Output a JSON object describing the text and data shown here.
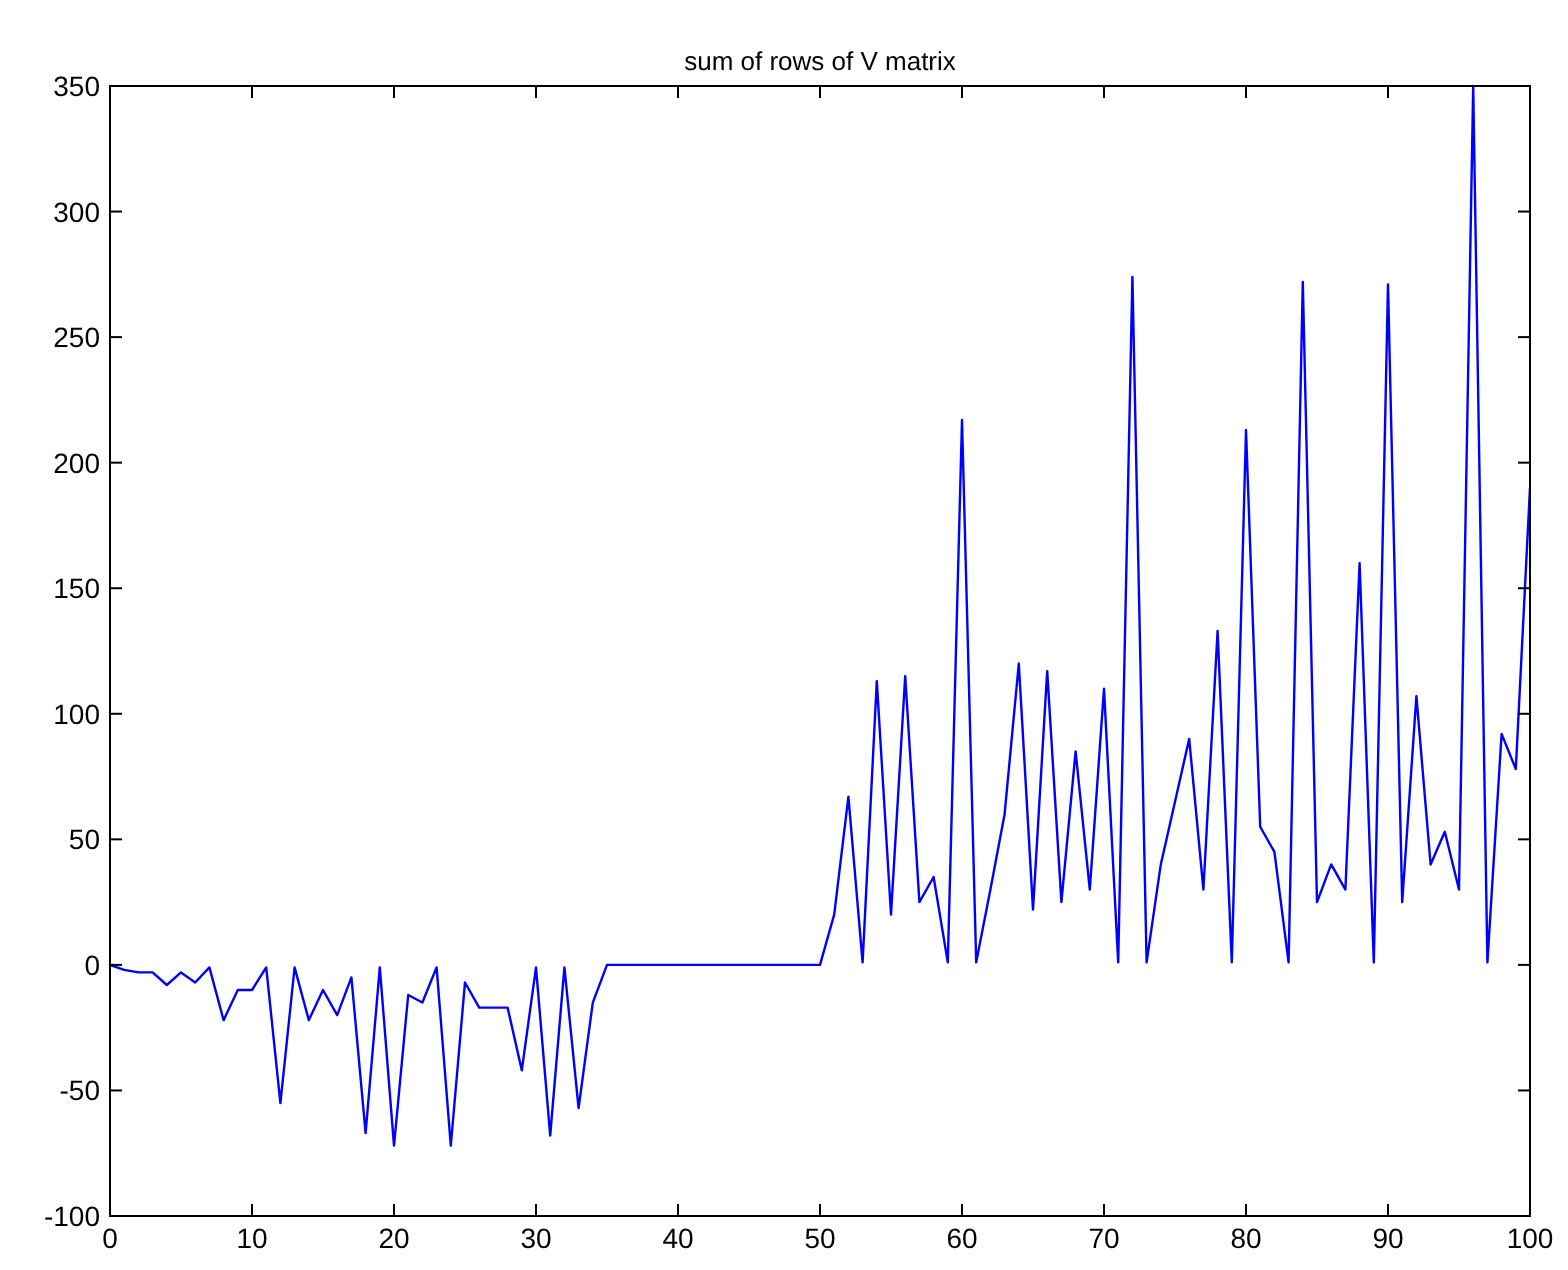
{
  "chart_data": {
    "type": "line",
    "title": "sum of rows of V matrix",
    "x": [
      0,
      1,
      2,
      3,
      4,
      5,
      6,
      7,
      8,
      9,
      10,
      11,
      12,
      13,
      14,
      15,
      16,
      17,
      18,
      19,
      20,
      21,
      22,
      23,
      24,
      25,
      26,
      27,
      28,
      29,
      30,
      31,
      32,
      33,
      34,
      35,
      36,
      37,
      38,
      39,
      40,
      41,
      42,
      43,
      44,
      45,
      46,
      47,
      48,
      49,
      50,
      51,
      52,
      53,
      54,
      55,
      56,
      57,
      58,
      59,
      60,
      61,
      62,
      63,
      64,
      65,
      66,
      67,
      68,
      69,
      70,
      71,
      72,
      73,
      74,
      75,
      76,
      77,
      78,
      79,
      80,
      81,
      82,
      83,
      84,
      85,
      86,
      87,
      88,
      89,
      90,
      91,
      92,
      93,
      94,
      95,
      96,
      97,
      98,
      99,
      100
    ],
    "series": [
      {
        "color": "#0000ff",
        "values": [
          0,
          -2,
          -3,
          -3,
          -8,
          -3,
          -7,
          -1,
          -22,
          -10,
          -10,
          -1,
          -55,
          -1,
          -22,
          -10,
          -20,
          -5,
          -67,
          -1,
          -72,
          -12,
          -15,
          -1,
          -72,
          -7,
          -17,
          -17,
          -17,
          -42,
          -1,
          -68,
          -1,
          -57,
          -15,
          0,
          0,
          0,
          0,
          0,
          0,
          0,
          0,
          0,
          0,
          0,
          0,
          0,
          0,
          0,
          0,
          20,
          67,
          1,
          113,
          20,
          115,
          25,
          35,
          1,
          217,
          1,
          30,
          60,
          120,
          22,
          117,
          25,
          85,
          30,
          110,
          1,
          274,
          1,
          40,
          65,
          90,
          30,
          133,
          1,
          213,
          55,
          45,
          1,
          272,
          25,
          40,
          30,
          160,
          1,
          271,
          25,
          107,
          40,
          53,
          30,
          350,
          1,
          92,
          78,
          190
        ]
      }
    ],
    "xlim": [
      0,
      100
    ],
    "ylim": [
      -100,
      350
    ],
    "xticks": [
      0,
      10,
      20,
      30,
      40,
      50,
      60,
      70,
      80,
      90,
      100
    ],
    "yticks": [
      -100,
      -50,
      0,
      50,
      100,
      150,
      200,
      250,
      300,
      350
    ],
    "grid": false,
    "marker": "none",
    "line_style": "solid"
  }
}
